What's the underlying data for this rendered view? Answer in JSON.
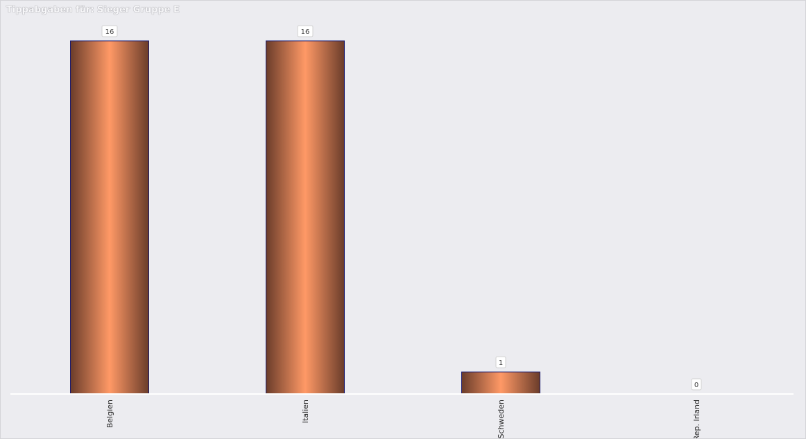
{
  "chart_data": {
    "type": "bar",
    "title": "Tippabgaben für: Sieger Gruppe E",
    "categories": [
      "Belgien",
      "Italien",
      "Schweden",
      "Rep. Irland"
    ],
    "values": [
      16,
      16,
      1,
      0
    ],
    "value_labels": [
      "16",
      "16",
      "1",
      "0"
    ],
    "xlabel": "",
    "ylabel": "",
    "ylim": [
      0,
      16
    ],
    "grid": false,
    "legend": "none",
    "colors": {
      "bar_center": "#ff9966",
      "bar_edge": "#6a3c2a",
      "bar_outline": "#1a1a6e",
      "background": "#ececf0",
      "axis_line": "#ffffff"
    }
  }
}
